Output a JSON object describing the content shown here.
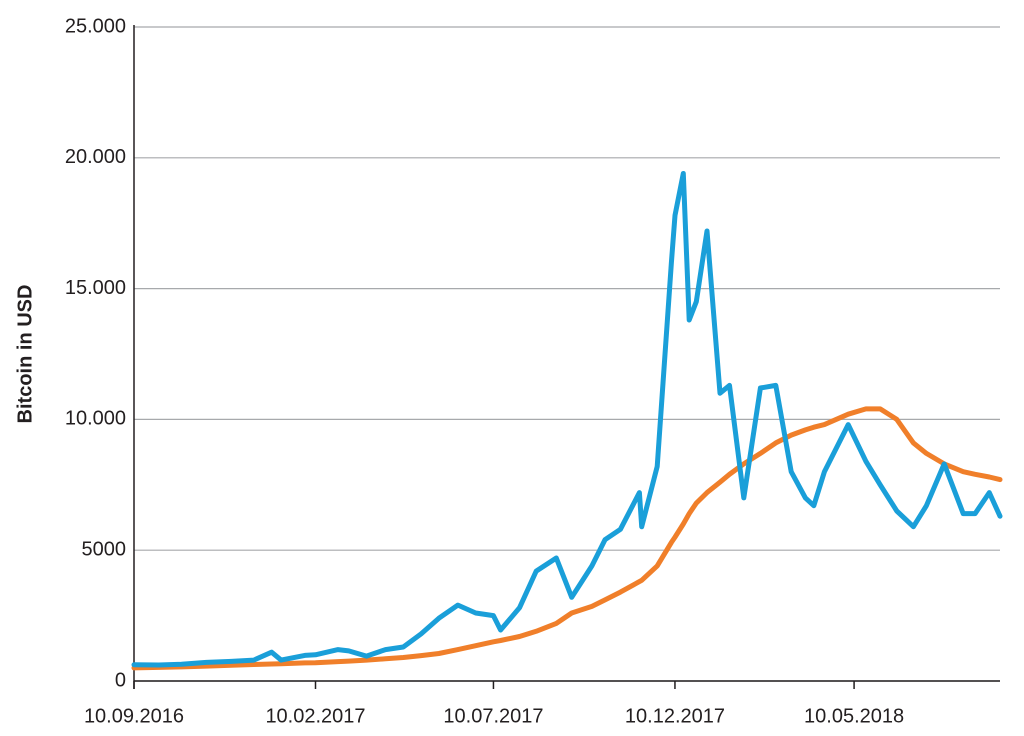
{
  "chart_data": {
    "type": "line",
    "y_label": "Bitcoin in USD",
    "x": [
      "2016-09-10",
      "2016-10-01",
      "2016-10-20",
      "2016-11-10",
      "2016-12-01",
      "2016-12-20",
      "2017-01-04",
      "2017-01-12",
      "2017-02-01",
      "2017-02-10",
      "2017-03-01",
      "2017-03-10",
      "2017-03-25",
      "2017-04-10",
      "2017-04-25",
      "2017-05-10",
      "2017-05-25",
      "2017-06-10",
      "2017-06-25",
      "2017-07-10",
      "2017-07-16",
      "2017-08-01",
      "2017-08-15",
      "2017-09-01",
      "2017-09-14",
      "2017-10-01",
      "2017-10-12",
      "2017-10-25",
      "2017-11-10",
      "2017-11-12",
      "2017-11-25",
      "2017-12-07",
      "2017-12-10",
      "2017-12-17",
      "2017-12-22",
      "2017-12-28",
      "2018-01-06",
      "2018-01-17",
      "2018-01-25",
      "2018-02-06",
      "2018-02-20",
      "2018-03-05",
      "2018-03-18",
      "2018-03-30",
      "2018-04-06",
      "2018-04-15",
      "2018-05-05",
      "2018-05-20",
      "2018-06-01",
      "2018-06-15",
      "2018-06-29",
      "2018-07-10",
      "2018-07-25",
      "2018-08-10",
      "2018-08-20",
      "2018-09-01",
      "2018-09-10"
    ],
    "series": [
      {
        "color": "#1a9fd9",
        "values": [
          620,
          610,
          640,
          710,
          750,
          800,
          1100,
          800,
          980,
          1000,
          1200,
          1150,
          950,
          1200,
          1300,
          1800,
          2400,
          2900,
          2600,
          2500,
          1950,
          2800,
          4200,
          4700,
          3200,
          4400,
          5400,
          5800,
          7200,
          5900,
          8200,
          16000,
          17800,
          19400,
          13800,
          14500,
          17200,
          11000,
          11300,
          7000,
          11200,
          11300,
          8000,
          7000,
          6700,
          8000,
          9800,
          8400,
          7500,
          6500,
          5900,
          6700,
          8300,
          6400,
          6400,
          7200,
          6300
        ]
      },
      {
        "color": "#f07f2a",
        "values": [
          500,
          520,
          540,
          570,
          600,
          630,
          650,
          660,
          690,
          700,
          740,
          760,
          800,
          850,
          900,
          970,
          1050,
          1200,
          1350,
          1500,
          1550,
          1700,
          1900,
          2200,
          2600,
          2850,
          3100,
          3400,
          3800,
          3850,
          4400,
          5300,
          5500,
          6000,
          6400,
          6800,
          7200,
          7600,
          7900,
          8300,
          8700,
          9100,
          9400,
          9600,
          9700,
          9800,
          10200,
          10400,
          10400,
          10000,
          9100,
          8700,
          8300,
          8000,
          7900,
          7800,
          7700
        ]
      }
    ],
    "xlim": [
      "2016-09-10",
      "2018-09-10"
    ],
    "xticks": [
      {
        "value": "2016-09-10",
        "label": "10.09.2016"
      },
      {
        "value": "2017-02-10",
        "label": "10.02.2017"
      },
      {
        "value": "2017-07-10",
        "label": "10.07.2017"
      },
      {
        "value": "2017-12-10",
        "label": "10.12.2017"
      },
      {
        "value": "2018-05-10",
        "label": "10.05.2018"
      }
    ],
    "ylim": [
      0,
      25000
    ],
    "yticks": [
      0,
      5000,
      {
        "value": 10000,
        "label": "10.000"
      },
      {
        "value": 15000,
        "label": "15.000"
      },
      {
        "value": 20000,
        "label": "20.000"
      },
      {
        "value": 25000,
        "label": "25.000"
      }
    ],
    "grid": true
  }
}
